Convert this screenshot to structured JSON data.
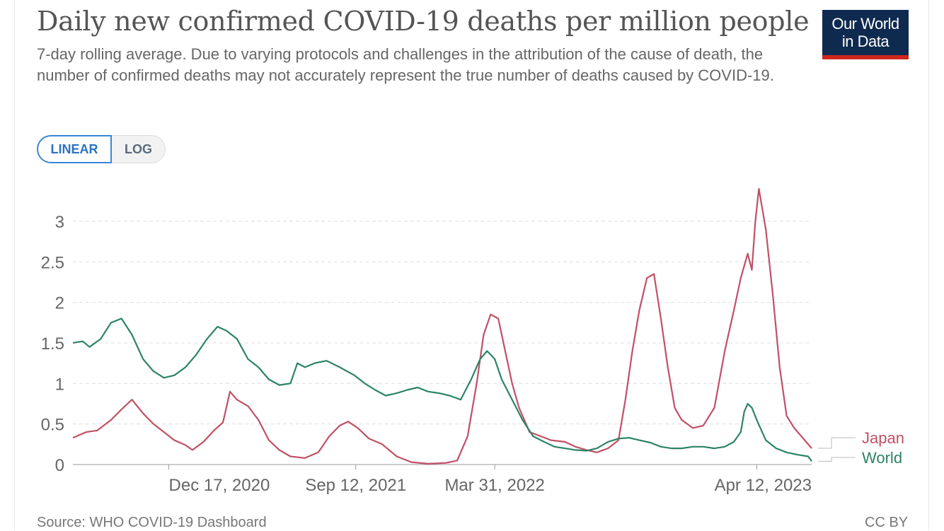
{
  "title": "Daily new confirmed COVID-19 deaths per million people",
  "subtitle": "7-day rolling average. Due to varying protocols and challenges in the attribution of the cause of death, the number of confirmed deaths may not accurately represent the true number of deaths caused by COVID-19.",
  "logo": {
    "line1": "Our World",
    "line2": "in Data"
  },
  "scale_toggle": {
    "linear_label": "LINEAR",
    "log_label": "LOG",
    "selected": "LINEAR"
  },
  "source": "Source: WHO COVID-19 Dashboard",
  "license": "CC BY",
  "colors": {
    "japan": "#c15065",
    "world": "#2c8465",
    "grid": "#dddddd",
    "axis_text": "#666666"
  },
  "chart_data": {
    "type": "line",
    "x_type": "date",
    "xlim": [
      "2020-08-01",
      "2023-06-30"
    ],
    "ylim": [
      0,
      3.5
    ],
    "y_ticks": [
      0,
      0.5,
      1,
      1.5,
      2,
      2.5,
      3
    ],
    "y_tick_labels": [
      "0",
      "0.5",
      "1",
      "1.5",
      "2",
      "2.5",
      "3"
    ],
    "x_ticks": [
      "2020-12-17",
      "2021-09-12",
      "2022-03-31",
      "2023-04-12"
    ],
    "x_tick_labels": [
      "Dec 17, 2020",
      "Sep 12, 2021",
      "Mar 31, 2022",
      "Apr 12, 2023"
    ],
    "grid": "horizontal dashed",
    "legend": "line-end labels at right",
    "series": [
      {
        "name": "Japan",
        "points": [
          [
            "2020-08-01",
            0.33
          ],
          [
            "2020-08-20",
            0.4
          ],
          [
            "2020-09-05",
            0.42
          ],
          [
            "2020-09-25",
            0.55
          ],
          [
            "2020-10-10",
            0.68
          ],
          [
            "2020-10-25",
            0.8
          ],
          [
            "2020-11-10",
            0.63
          ],
          [
            "2020-11-25",
            0.5
          ],
          [
            "2020-12-10",
            0.4
          ],
          [
            "2020-12-25",
            0.3
          ],
          [
            "2021-01-10",
            0.24
          ],
          [
            "2021-01-20",
            0.18
          ],
          [
            "2021-02-05",
            0.28
          ],
          [
            "2021-02-20",
            0.42
          ],
          [
            "2021-03-05",
            0.52
          ],
          [
            "2021-03-15",
            0.9
          ],
          [
            "2021-03-25",
            0.8
          ],
          [
            "2021-04-10",
            0.72
          ],
          [
            "2021-04-25",
            0.55
          ],
          [
            "2021-05-10",
            0.3
          ],
          [
            "2021-05-25",
            0.18
          ],
          [
            "2021-06-10",
            0.1
          ],
          [
            "2021-07-01",
            0.08
          ],
          [
            "2021-07-20",
            0.15
          ],
          [
            "2021-08-05",
            0.35
          ],
          [
            "2021-08-20",
            0.48
          ],
          [
            "2021-09-01",
            0.53
          ],
          [
            "2021-09-15",
            0.45
          ],
          [
            "2021-10-01",
            0.32
          ],
          [
            "2021-10-20",
            0.25
          ],
          [
            "2021-11-10",
            0.1
          ],
          [
            "2021-12-01",
            0.03
          ],
          [
            "2021-12-25",
            0.01
          ],
          [
            "2022-01-20",
            0.02
          ],
          [
            "2022-02-05",
            0.05
          ],
          [
            "2022-02-20",
            0.35
          ],
          [
            "2022-03-05",
            1.0
          ],
          [
            "2022-03-15",
            1.6
          ],
          [
            "2022-03-25",
            1.85
          ],
          [
            "2022-04-05",
            1.8
          ],
          [
            "2022-04-15",
            1.4
          ],
          [
            "2022-04-25",
            1.0
          ],
          [
            "2022-05-05",
            0.7
          ],
          [
            "2022-05-20",
            0.4
          ],
          [
            "2022-06-05",
            0.35
          ],
          [
            "2022-06-20",
            0.3
          ],
          [
            "2022-07-10",
            0.28
          ],
          [
            "2022-07-25",
            0.22
          ],
          [
            "2022-08-10",
            0.18
          ],
          [
            "2022-08-25",
            0.15
          ],
          [
            "2022-09-10",
            0.2
          ],
          [
            "2022-09-25",
            0.3
          ],
          [
            "2022-10-05",
            0.8
          ],
          [
            "2022-10-15",
            1.4
          ],
          [
            "2022-10-25",
            1.9
          ],
          [
            "2022-11-05",
            2.3
          ],
          [
            "2022-11-15",
            2.35
          ],
          [
            "2022-11-25",
            1.8
          ],
          [
            "2022-12-05",
            1.2
          ],
          [
            "2022-12-15",
            0.7
          ],
          [
            "2022-12-25",
            0.55
          ],
          [
            "2023-01-10",
            0.45
          ],
          [
            "2023-01-25",
            0.48
          ],
          [
            "2023-02-10",
            0.7
          ],
          [
            "2023-02-25",
            1.4
          ],
          [
            "2023-03-10",
            1.9
          ],
          [
            "2023-03-20",
            2.3
          ],
          [
            "2023-03-30",
            2.6
          ],
          [
            "2023-04-05",
            2.4
          ],
          [
            "2023-04-10",
            3.0
          ],
          [
            "2023-04-15",
            3.4
          ],
          [
            "2023-04-25",
            2.9
          ],
          [
            "2023-05-05",
            2.1
          ],
          [
            "2023-05-15",
            1.2
          ],
          [
            "2023-05-25",
            0.6
          ],
          [
            "2023-06-05",
            0.45
          ],
          [
            "2023-06-20",
            0.3
          ],
          [
            "2023-06-30",
            0.2
          ]
        ]
      },
      {
        "name": "World",
        "points": [
          [
            "2020-08-01",
            1.5
          ],
          [
            "2020-08-15",
            1.52
          ],
          [
            "2020-08-25",
            1.45
          ],
          [
            "2020-09-10",
            1.55
          ],
          [
            "2020-09-25",
            1.75
          ],
          [
            "2020-10-10",
            1.8
          ],
          [
            "2020-10-25",
            1.6
          ],
          [
            "2020-11-10",
            1.3
          ],
          [
            "2020-11-25",
            1.15
          ],
          [
            "2020-12-10",
            1.07
          ],
          [
            "2020-12-25",
            1.1
          ],
          [
            "2021-01-10",
            1.2
          ],
          [
            "2021-01-25",
            1.35
          ],
          [
            "2021-02-10",
            1.55
          ],
          [
            "2021-02-25",
            1.7
          ],
          [
            "2021-03-10",
            1.65
          ],
          [
            "2021-03-25",
            1.55
          ],
          [
            "2021-04-10",
            1.3
          ],
          [
            "2021-04-25",
            1.2
          ],
          [
            "2021-05-10",
            1.05
          ],
          [
            "2021-05-25",
            0.98
          ],
          [
            "2021-06-10",
            1.0
          ],
          [
            "2021-06-20",
            1.25
          ],
          [
            "2021-07-01",
            1.2
          ],
          [
            "2021-07-15",
            1.25
          ],
          [
            "2021-08-01",
            1.28
          ],
          [
            "2021-08-20",
            1.2
          ],
          [
            "2021-09-10",
            1.1
          ],
          [
            "2021-09-25",
            1.0
          ],
          [
            "2021-10-10",
            0.92
          ],
          [
            "2021-10-25",
            0.85
          ],
          [
            "2021-11-10",
            0.88
          ],
          [
            "2021-11-25",
            0.92
          ],
          [
            "2021-12-10",
            0.95
          ],
          [
            "2021-12-25",
            0.9
          ],
          [
            "2022-01-10",
            0.88
          ],
          [
            "2022-01-25",
            0.85
          ],
          [
            "2022-02-10",
            0.8
          ],
          [
            "2022-02-25",
            1.05
          ],
          [
            "2022-03-10",
            1.3
          ],
          [
            "2022-03-20",
            1.4
          ],
          [
            "2022-03-31",
            1.3
          ],
          [
            "2022-04-10",
            1.05
          ],
          [
            "2022-04-25",
            0.8
          ],
          [
            "2022-05-10",
            0.55
          ],
          [
            "2022-05-25",
            0.35
          ],
          [
            "2022-06-10",
            0.28
          ],
          [
            "2022-06-25",
            0.22
          ],
          [
            "2022-07-10",
            0.2
          ],
          [
            "2022-07-25",
            0.18
          ],
          [
            "2022-08-10",
            0.17
          ],
          [
            "2022-08-25",
            0.2
          ],
          [
            "2022-09-10",
            0.28
          ],
          [
            "2022-09-25",
            0.32
          ],
          [
            "2022-10-10",
            0.33
          ],
          [
            "2022-10-25",
            0.3
          ],
          [
            "2022-11-10",
            0.27
          ],
          [
            "2022-11-25",
            0.22
          ],
          [
            "2022-12-10",
            0.2
          ],
          [
            "2022-12-25",
            0.2
          ],
          [
            "2023-01-10",
            0.22
          ],
          [
            "2023-01-25",
            0.22
          ],
          [
            "2023-02-10",
            0.2
          ],
          [
            "2023-02-25",
            0.22
          ],
          [
            "2023-03-10",
            0.28
          ],
          [
            "2023-03-20",
            0.4
          ],
          [
            "2023-03-25",
            0.65
          ],
          [
            "2023-03-30",
            0.75
          ],
          [
            "2023-04-05",
            0.7
          ],
          [
            "2023-04-12",
            0.55
          ],
          [
            "2023-04-25",
            0.3
          ],
          [
            "2023-05-10",
            0.2
          ],
          [
            "2023-05-25",
            0.15
          ],
          [
            "2023-06-10",
            0.12
          ],
          [
            "2023-06-25",
            0.1
          ],
          [
            "2023-06-30",
            0.04
          ]
        ]
      }
    ]
  }
}
